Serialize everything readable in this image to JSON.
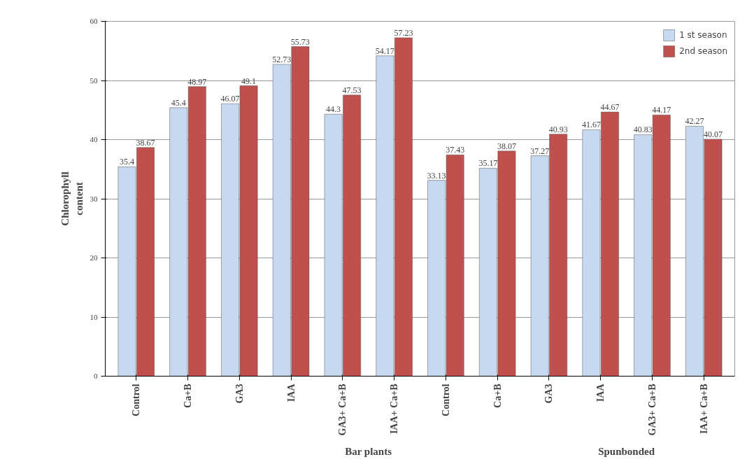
{
  "chart_data": {
    "type": "bar",
    "ylabel": "Chlorophyll\ncontent",
    "categories": [
      "Control",
      "Ca+B",
      "GA3",
      "IAA",
      "GA3+ Ca+B",
      "IAA+ Ca+B",
      "Control",
      "Ca+B",
      "GA3",
      "IAA",
      "GA3+ Ca+B",
      "IAA+ Ca+B"
    ],
    "series": [
      {
        "name": "1 st season",
        "color": "#c6d9f1",
        "values": [
          35.4,
          45.4,
          46.07,
          52.73,
          44.3,
          54.17,
          33.13,
          35.17,
          37.27,
          41.67,
          40.83,
          42.27
        ]
      },
      {
        "name": "2nd season",
        "color": "#c0504d",
        "values": [
          38.67,
          48.97,
          49.1,
          55.73,
          47.53,
          57.23,
          37.43,
          38.07,
          40.93,
          44.67,
          44.17,
          40.07
        ]
      }
    ],
    "annotations": [
      "Bar plants",
      "Spunbonded"
    ],
    "ylim": [
      0,
      60
    ],
    "yticks": [
      0,
      10,
      20,
      30,
      40,
      50,
      60
    ],
    "grid": "y",
    "legend": "top right",
    "data_labels": true
  }
}
